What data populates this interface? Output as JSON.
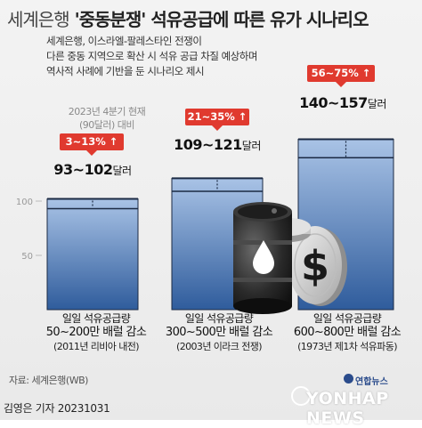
{
  "header": {
    "title_lead": "세계은행",
    "title_main": "'중동분쟁' 석유공급에 따른 유가 시나리오",
    "subtitle_lines": [
      "세계은행, 이스라엘-팔레스타인 전쟁이",
      "다른 중동 지역으로 확산 시 석유 공급 차질 예상하며",
      "역사적 사례에 기반을 둔 시나리오 제시"
    ]
  },
  "chart_data": {
    "type": "bar",
    "ylim": [
      0,
      160
    ],
    "yticks": [
      50,
      100
    ],
    "baseline": {
      "value": 90,
      "label_lines": [
        "2023년 4분기 현재",
        "(90달러) 대비"
      ]
    },
    "scenarios": [
      {
        "range_label": "93~102",
        "unit": "달러",
        "low": 93,
        "high": 102,
        "increase_label": "3~13%",
        "cut_label": "일일 석유공급량",
        "cut_amount": "50~200만 배럴 감소",
        "precedent": "(2011년 리비아 내전)"
      },
      {
        "range_label": "109~121",
        "unit": "달러",
        "low": 109,
        "high": 121,
        "increase_label": "21~35%",
        "cut_label": "일일 석유공급량",
        "cut_amount": "300~500만 배럴 감소",
        "precedent": "(2003년 이라크 전쟁)"
      },
      {
        "range_label": "140~157",
        "unit": "달러",
        "low": 140,
        "high": 157,
        "increase_label": "56~75%",
        "cut_label": "일일 석유공급량",
        "cut_amount": "600~800만 배럴 감소",
        "precedent": "(1973년 제1차 석유파동)"
      }
    ],
    "colors": {
      "bar_top": "#a9c3e6",
      "bar_bottom": "#2f5c9c",
      "badge": "#e03a2f",
      "outline": "#1b2a44"
    }
  },
  "footer": {
    "source": "자료: 세계은행(WB)",
    "byline": "김영은 기자  20231031",
    "logo_kr": "연합뉴스",
    "logo_en": "YONHAP NEWS"
  },
  "icons": [
    "oil-barrel-icon",
    "oil-drop-icon",
    "dollar-coin-icon",
    "up-arrow-icon"
  ]
}
